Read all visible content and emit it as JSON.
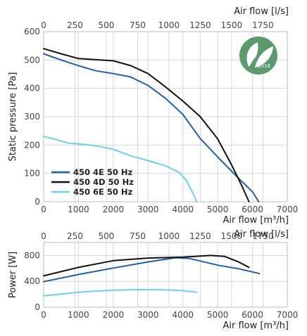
{
  "colors": {
    "grid": "#d7d7d7",
    "frame": "#bdbdbd",
    "badge": "#5a9a6c"
  },
  "badge": {
    "label": "ErP",
    "year": "2018"
  },
  "chart_data": [
    {
      "type": "line",
      "legend": "bottom-left",
      "grid": true,
      "xlabel": "Air flow [m³/h]",
      "x2label": "Air flow [l/s]",
      "ylabel": "Static pressure [Pa]",
      "xlim": [
        0,
        7000
      ],
      "ylim": [
        0,
        600
      ],
      "x_ticks": [
        "0",
        "1000",
        "2000",
        "3000",
        "4000",
        "5000",
        "6000",
        "7000"
      ],
      "x_tick_values": [
        0,
        1000,
        2000,
        3000,
        4000,
        5000,
        6000,
        7000
      ],
      "x2_ticks": [
        "0",
        "250",
        "500",
        "750",
        "1000",
        "1250",
        "1500",
        "1750"
      ],
      "x2_tick_values": [
        0,
        250,
        500,
        750,
        1000,
        1250,
        1500,
        1750
      ],
      "y_ticks": [
        "0",
        "100",
        "200",
        "300",
        "400",
        "500",
        "600"
      ],
      "y_tick_values": [
        0,
        100,
        200,
        300,
        400,
        500,
        600
      ],
      "series": [
        {
          "name": "450 4E 50 Hz",
          "color": "#1f5fa8",
          "points": [
            [
              0,
              522
            ],
            [
              500,
              500
            ],
            [
              1000,
              480
            ],
            [
              1500,
              462
            ],
            [
              2000,
              452
            ],
            [
              2500,
              440
            ],
            [
              3000,
              410
            ],
            [
              3500,
              365
            ],
            [
              4000,
              308
            ],
            [
              4500,
              223
            ],
            [
              5000,
              158
            ],
            [
              5500,
              95
            ],
            [
              6000,
              35
            ],
            [
              6180,
              0
            ]
          ]
        },
        {
          "name": "450 4D 50 Hz",
          "color": "#111111",
          "points": [
            [
              0,
              540
            ],
            [
              500,
              522
            ],
            [
              1000,
              505
            ],
            [
              1500,
              501
            ],
            [
              2000,
              497
            ],
            [
              2500,
              480
            ],
            [
              3000,
              452
            ],
            [
              3500,
              405
            ],
            [
              4000,
              355
            ],
            [
              4500,
              300
            ],
            [
              5000,
              222
            ],
            [
              5400,
              130
            ],
            [
              5700,
              55
            ],
            [
              5900,
              0
            ]
          ]
        },
        {
          "name": "450 6E 50 Hz",
          "color": "#6ad0f0",
          "points": [
            [
              0,
              230
            ],
            [
              350,
              220
            ],
            [
              700,
              207
            ],
            [
              1200,
              202
            ],
            [
              1600,
              195
            ],
            [
              2000,
              185
            ],
            [
              2500,
              162
            ],
            [
              3000,
              145
            ],
            [
              3500,
              127
            ],
            [
              3900,
              103
            ],
            [
              4100,
              75
            ],
            [
              4300,
              28
            ],
            [
              4400,
              0
            ]
          ]
        }
      ]
    },
    {
      "type": "line",
      "grid": true,
      "xlabel": "Air flow [m³/h]",
      "x2label": "Air flow [l/s]",
      "ylabel": "Power [W]",
      "xlim": [
        0,
        7000
      ],
      "ylim": [
        0,
        1000
      ],
      "x_ticks": [
        "0",
        "1000",
        "2000",
        "3000",
        "4000",
        "5000",
        "6000",
        "7000"
      ],
      "x_tick_values": [
        0,
        1000,
        2000,
        3000,
        4000,
        5000,
        6000,
        7000
      ],
      "x2_ticks": [
        "0",
        "250",
        "500",
        "750",
        "1000",
        "1250",
        "1500",
        "1750"
      ],
      "x2_tick_values": [
        0,
        250,
        500,
        750,
        1000,
        1250,
        1500,
        1750
      ],
      "y_ticks": [
        "0",
        "400",
        "800"
      ],
      "y_tick_values": [
        0,
        400,
        800
      ],
      "series": [
        {
          "name": "450 4E 50 Hz",
          "color": "#1f5fa8",
          "points": [
            [
              0,
              395
            ],
            [
              1000,
              505
            ],
            [
              2000,
              605
            ],
            [
              3000,
              700
            ],
            [
              3800,
              765
            ],
            [
              4200,
              752
            ],
            [
              5000,
              650
            ],
            [
              5600,
              595
            ],
            [
              6200,
              520
            ]
          ]
        },
        {
          "name": "450 4D 50 Hz",
          "color": "#111111",
          "points": [
            [
              0,
              485
            ],
            [
              1000,
              615
            ],
            [
              2000,
              720
            ],
            [
              3000,
              760
            ],
            [
              4000,
              775
            ],
            [
              4800,
              800
            ],
            [
              5200,
              785
            ],
            [
              5600,
              700
            ],
            [
              5900,
              615
            ]
          ]
        },
        {
          "name": "450 6E 50 Hz",
          "color": "#6ad0f0",
          "points": [
            [
              0,
              175
            ],
            [
              1000,
              232
            ],
            [
              2000,
              263
            ],
            [
              2800,
              272
            ],
            [
              3400,
              270
            ],
            [
              4000,
              255
            ],
            [
              4400,
              230
            ]
          ]
        }
      ]
    }
  ]
}
